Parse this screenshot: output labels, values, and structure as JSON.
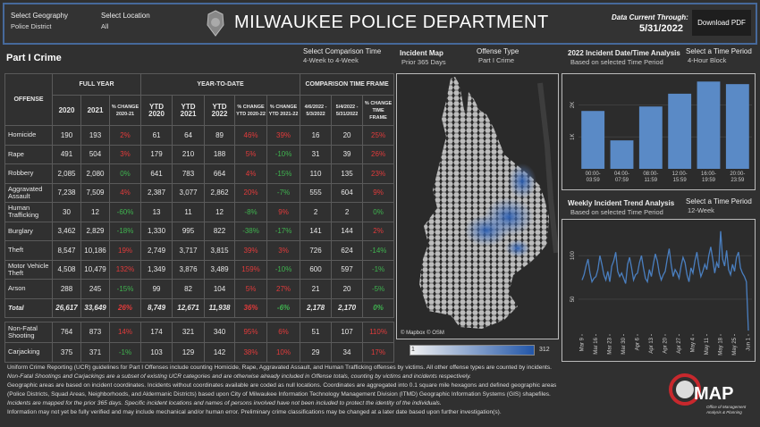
{
  "header": {
    "geography_label": "Select Geography",
    "geography_value": "Police District",
    "location_label": "Select Location",
    "location_value": "All",
    "title": "MILWAUKEE POLICE DEPARTMENT",
    "data_current_label": "Data Current Through:",
    "data_current_date": "5/31/2022",
    "download_button": "Download PDF"
  },
  "controls": {
    "section_title": "Part I Crime",
    "comparison_label": "Select Comparison Time",
    "comparison_value": "4-Week to 4-Week",
    "map_label": "Incident Map",
    "map_value": "Prior 365 Days",
    "offense_label": "Offense Type",
    "offense_value": "Part I Crime",
    "bar_period_label": "Select a Time Period",
    "bar_period_value": "4-Hour Block",
    "line_period_label": "Select a Time Period",
    "line_period_value": "12-Week"
  },
  "table": {
    "offense_header": "OFFENSE",
    "group_headers": [
      "FULL YEAR",
      "YEAR-TO-DATE",
      "COMPARISON TIME FRAME"
    ],
    "columns": [
      "2020",
      "2021",
      "% CHANGE 2020-21",
      "YTD 2020",
      "YTD 2021",
      "YTD 2022",
      "% CHANGE YTD 2020-22",
      "% CHANGE YTD 2021-22",
      "4/6/2022 - 5/3/2022",
      "5/4/2022 - 5/31/2022",
      "% CHANGE TIME FRAME"
    ],
    "rows": [
      [
        "Homicide",
        "190",
        "193",
        "2%",
        "61",
        "64",
        "89",
        "46%",
        "39%",
        "16",
        "20",
        "25%"
      ],
      [
        "Rape",
        "491",
        "504",
        "3%",
        "179",
        "210",
        "188",
        "5%",
        "-10%",
        "31",
        "39",
        "26%"
      ],
      [
        "Robbery",
        "2,085",
        "2,080",
        "0%",
        "641",
        "783",
        "664",
        "4%",
        "-15%",
        "110",
        "135",
        "23%"
      ],
      [
        "Aggravated Assault",
        "7,238",
        "7,509",
        "4%",
        "2,387",
        "3,077",
        "2,862",
        "20%",
        "-7%",
        "555",
        "604",
        "9%"
      ],
      [
        "Human Trafficking",
        "30",
        "12",
        "-60%",
        "13",
        "11",
        "12",
        "-8%",
        "9%",
        "2",
        "2",
        "0%"
      ],
      [
        "Burglary",
        "3,462",
        "2,829",
        "-18%",
        "1,330",
        "995",
        "822",
        "-38%",
        "-17%",
        "141",
        "144",
        "2%"
      ],
      [
        "Theft",
        "8,547",
        "10,186",
        "19%",
        "2,749",
        "3,717",
        "3,815",
        "39%",
        "3%",
        "726",
        "624",
        "-14%"
      ],
      [
        "Motor Vehicle Theft",
        "4,508",
        "10,479",
        "132%",
        "1,349",
        "3,876",
        "3,489",
        "159%",
        "-10%",
        "600",
        "597",
        "-1%"
      ],
      [
        "Arson",
        "288",
        "245",
        "-15%",
        "99",
        "82",
        "104",
        "5%",
        "27%",
        "21",
        "20",
        "-5%"
      ]
    ],
    "total_row": [
      "Total",
      "26,617",
      "33,649",
      "26%",
      "8,749",
      "12,671",
      "11,938",
      "36%",
      "-6%",
      "2,178",
      "2,170",
      "0%"
    ],
    "extra_rows": [
      [
        "Non-Fatal Shooting",
        "764",
        "873",
        "14%",
        "174",
        "321",
        "340",
        "95%",
        "6%",
        "51",
        "107",
        "110%"
      ],
      [
        "Carjacking",
        "375",
        "371",
        "-1%",
        "103",
        "129",
        "142",
        "38%",
        "10%",
        "29",
        "34",
        "17%"
      ]
    ]
  },
  "map": {
    "attribution": "© Mapbox © OSM",
    "legend_min": "1",
    "legend_max": "312"
  },
  "chart_data": [
    {
      "type": "bar",
      "title": "2022 Incident Date/Time Analysis",
      "subtitle": "Based on selected Time Period",
      "categories": [
        "00:00-03:59",
        "04:00-07:59",
        "08:00-11:59",
        "12:00-15:59",
        "16:00-19:59",
        "20:00-23:59"
      ],
      "values": [
        1810,
        890,
        1950,
        2350,
        2730,
        2650
      ],
      "color": "#5a8ac6",
      "ylim": [
        0,
        2850
      ],
      "yticks": [
        {
          "value": 1000,
          "label": "1K"
        },
        {
          "value": 2000,
          "label": "2K"
        }
      ],
      "grid": true
    },
    {
      "type": "line",
      "title": "Weekly Incident Trend Analysis",
      "subtitle": "Based on selected Time Period",
      "categories": [
        "Mar 9",
        null,
        null,
        null,
        null,
        null,
        null,
        "Mar 16",
        null,
        null,
        null,
        null,
        null,
        null,
        "Mar 23",
        null,
        null,
        null,
        null,
        null,
        null,
        "Mar 30",
        null,
        null,
        null,
        null,
        null,
        null,
        "Apr 6",
        null,
        null,
        null,
        null,
        null,
        null,
        "Apr 13",
        null,
        null,
        null,
        null,
        null,
        null,
        "Apr 20",
        null,
        null,
        null,
        null,
        null,
        null,
        "Apr 27",
        null,
        null,
        null,
        null,
        null,
        null,
        "May 4",
        null,
        null,
        null,
        null,
        null,
        null,
        "May 11",
        null,
        null,
        null,
        null,
        null,
        null,
        "May 18",
        null,
        null,
        null,
        null,
        null,
        null,
        "May 25",
        null,
        null,
        null,
        null,
        null,
        null,
        "Jun 1"
      ],
      "values": [
        72,
        78,
        88,
        96,
        80,
        70,
        74,
        76,
        84,
        100,
        90,
        78,
        72,
        82,
        70,
        88,
        94,
        104,
        82,
        76,
        80,
        74,
        68,
        90,
        98,
        86,
        72,
        78,
        80,
        92,
        100,
        86,
        74,
        70,
        84,
        76,
        90,
        102,
        94,
        80,
        72,
        78,
        82,
        96,
        108,
        90,
        76,
        84,
        80,
        74,
        88,
        98,
        92,
        78,
        70,
        86,
        80,
        94,
        104,
        88,
        76,
        82,
        90,
        84,
        100,
        110,
        96,
        80,
        92,
        86,
        128,
        96,
        88,
        106,
        84,
        78,
        90,
        82,
        98,
        104,
        86,
        80,
        76,
        70,
        14
      ],
      "color": "#4a7fc0",
      "ylim": [
        10,
        135
      ],
      "yticks": [
        50,
        100
      ],
      "grid": true
    }
  ],
  "footer": {
    "lines": [
      "Uniform Crime Reporting (UCR) guidelines for Part I Offenses include counting Homicide, Rape, Aggravated Assault, and Human Trafficking offenses by victims. All other offense types are counted by incidents.",
      "Non-Fatal Shootings and Carjackings are a subset of existing UCR categories and are otherwise already included in Offense totals, counting by victims and incidents respectively.",
      "Geographic areas are based on incident coordinates. Incidents without coordinates available are coded as null locations. Coordinates are aggregated into 0.1 square mile hexagons and defined geographic areas",
      "(Police Districts, Squad Areas, Neighborhoods, and Aldermanic Districts) based upon City of Milwaukee Information Technology Management Division (ITMD) Geographic Information Systems (GIS) shapefiles.",
      "Incidents are mapped for the prior 365 days. Specific incident locations and names of persons involved have not been included to protect the identity of the individuals.",
      "Information may not yet be fully verified and may include mechanical and/or human error. Preliminary crime classifications may be changed at a later date based upon further investigation(s)."
    ],
    "logo_text": "MAP",
    "logo_sub1": "Office of Management",
    "logo_sub2": "Analysis & Planning"
  }
}
